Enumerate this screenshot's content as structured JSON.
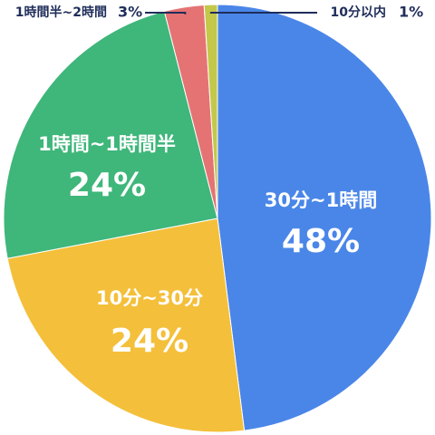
{
  "chart_data": {
    "type": "pie",
    "categories": [
      "30分~1時間",
      "10分~30分",
      "1時間~1時間半",
      "1時間半~2時間",
      "10分以内"
    ],
    "values": [
      48,
      24,
      24,
      3,
      1
    ],
    "value_labels": [
      "48%",
      "24%",
      "24%",
      "3%",
      "1%"
    ],
    "colors": [
      "#4a86e8",
      "#f4bf3a",
      "#3fb67a",
      "#e57373",
      "#c3c84a"
    ]
  }
}
